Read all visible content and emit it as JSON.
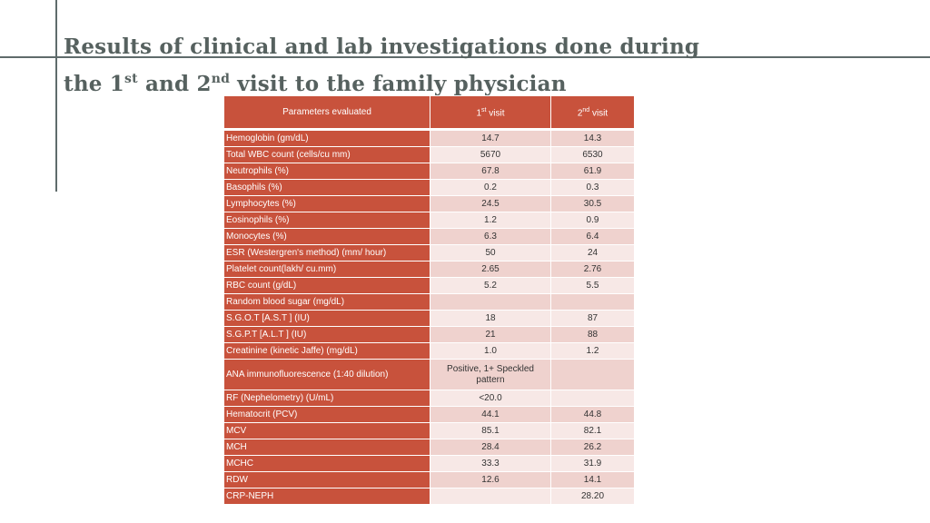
{
  "title": {
    "line1": "Results of clinical and lab investigations done during",
    "line2_a": "the 1",
    "line2_sup1": "st",
    "line2_b": " and 2",
    "line2_sup2": "nd",
    "line2_c": " visit to the family physician"
  },
  "table": {
    "headers": {
      "param": "Parameters evaluated",
      "v1": "1",
      "v1_sup": "st",
      "v1_rest": " visit",
      "v2": "2",
      "v2_sup": "nd",
      "v2_rest": " visit"
    },
    "rows": [
      {
        "param": "Hemoglobin (gm/dL)",
        "v1": "14.7",
        "v2": "14.3"
      },
      {
        "param": "Total WBC count (cells/cu mm)",
        "v1": "5670",
        "v2": "6530"
      },
      {
        "param": "Neutrophils (%)",
        "v1": "67.8",
        "v2": "61.9"
      },
      {
        "param": "Basophils (%)",
        "v1": "0.2",
        "v2": "0.3"
      },
      {
        "param": "Lymphocytes (%)",
        "v1": "24.5",
        "v2": "30.5"
      },
      {
        "param": "Eosinophils (%)",
        "v1": "1.2",
        "v2": "0.9"
      },
      {
        "param": "Monocytes (%)",
        "v1": "6.3",
        "v2": "6.4"
      },
      {
        "param": "ESR (Westergren's method) (mm/ hour)",
        "v1": "50",
        "v2": "24"
      },
      {
        "param": "Platelet count(lakh/ cu.mm)",
        "v1": "2.65",
        "v2": "2.76"
      },
      {
        "param": "RBC count (g/dL)",
        "v1": "5.2",
        "v2": "5.5"
      },
      {
        "param": "Random blood sugar (mg/dL)",
        "v1": "",
        "v2": ""
      },
      {
        "param": "S.G.O.T [A.S.T ] (IU)",
        "v1": "18",
        "v2": "87"
      },
      {
        "param": "S.G.P.T [A.L.T ] (IU)",
        "v1": "21",
        "v2": "88"
      },
      {
        "param": "Creatinine (kinetic Jaffe) (mg/dL)",
        "v1": "1.0",
        "v2": "1.2"
      },
      {
        "param": "ANA immunofluorescence (1:40 dilution)",
        "v1": "Positive, 1+ Speckled pattern",
        "v2": ""
      },
      {
        "param": "RF (Nephelometry) (U/mL)",
        "v1": "<20.0",
        "v2": ""
      },
      {
        "param": "Hematocrit (PCV)",
        "v1": "44.1",
        "v2": "44.8"
      },
      {
        "param": "MCV",
        "v1": "85.1",
        "v2": "82.1"
      },
      {
        "param": "MCH",
        "v1": "28.4",
        "v2": "26.2"
      },
      {
        "param": "MCHC",
        "v1": "33.3",
        "v2": "31.9"
      },
      {
        "param": "RDW",
        "v1": "12.6",
        "v2": "14.1"
      },
      {
        "param": "CRP-NEPH",
        "v1": "",
        "v2": "28.20"
      }
    ]
  }
}
